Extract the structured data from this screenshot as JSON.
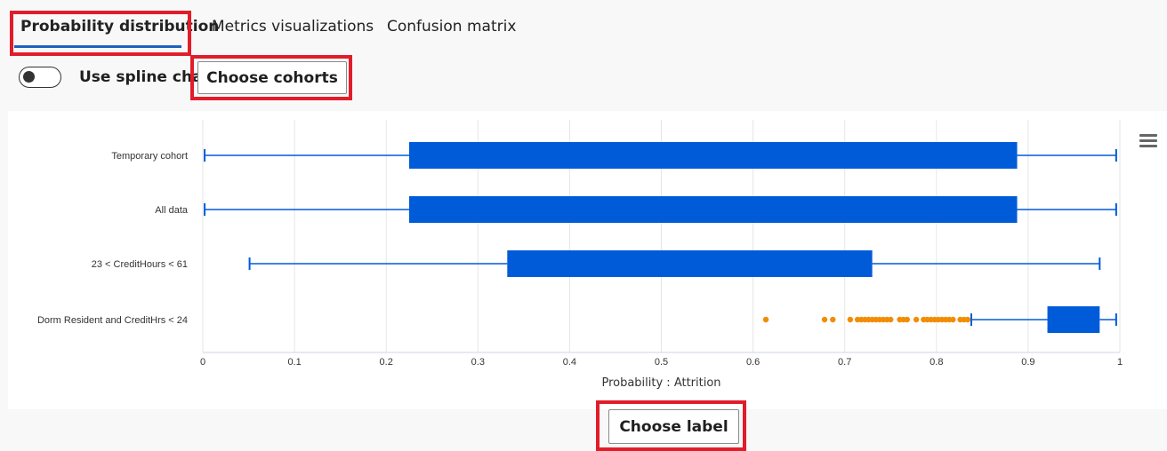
{
  "tabs": [
    {
      "label": "Probability distribution",
      "active": true
    },
    {
      "label": "Metrics visualizations",
      "active": false
    },
    {
      "label": "Confusion matrix",
      "active": false
    }
  ],
  "controls": {
    "spline_toggle_label": "Use spline chart",
    "spline_enabled": false,
    "choose_cohorts_label": "Choose cohorts",
    "choose_label_label": "Choose label"
  },
  "colors": {
    "box": "#005bd9",
    "outlier": "#f28c00",
    "highlight": "#e11d2a",
    "tab_underline": "#1f5fbf"
  },
  "icons": [
    "hamburger-menu-icon"
  ],
  "chart_data": {
    "type": "boxplot",
    "orientation": "horizontal",
    "xlabel": "Probability : Attrition",
    "xlim": [
      0,
      1
    ],
    "xticks": [
      "0",
      "0.1",
      "0.2",
      "0.3",
      "0.4",
      "0.5",
      "0.6",
      "0.7",
      "0.8",
      "0.9",
      "1"
    ],
    "grid": true,
    "series": [
      {
        "name": "Temporary cohort",
        "min": 0.002,
        "q1": 0.225,
        "q3": 0.888,
        "max": 0.996,
        "outliers": []
      },
      {
        "name": "All data",
        "min": 0.002,
        "q1": 0.225,
        "q3": 0.888,
        "max": 0.996,
        "outliers": []
      },
      {
        "name": "23 < CreditHours < 61",
        "min": 0.051,
        "q1": 0.332,
        "q3": 0.73,
        "max": 0.978,
        "outliers": []
      },
      {
        "name": "Dorm Resident and CreditHrs < 24",
        "min": 0.838,
        "q1": 0.921,
        "q3": 0.978,
        "max": 0.996,
        "outliers": [
          0.614,
          0.678,
          0.687,
          0.706,
          0.714,
          0.718,
          0.722,
          0.726,
          0.73,
          0.734,
          0.738,
          0.742,
          0.746,
          0.75,
          0.76,
          0.764,
          0.768,
          0.778,
          0.786,
          0.79,
          0.794,
          0.798,
          0.802,
          0.806,
          0.81,
          0.814,
          0.818,
          0.826,
          0.83,
          0.834
        ]
      }
    ]
  }
}
